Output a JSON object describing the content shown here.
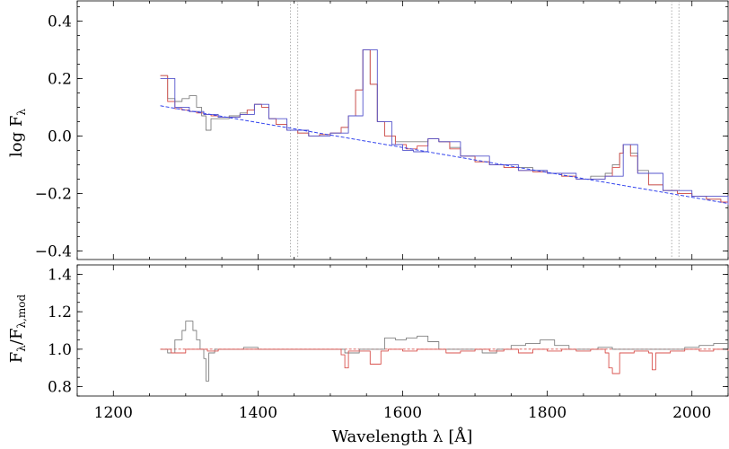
{
  "chart_data": [
    {
      "type": "line",
      "panel": "top",
      "title": "",
      "xlabel": "",
      "ylabel": "log F",
      "ylabel_sub": "λ",
      "xlim": [
        1150,
        2050
      ],
      "ylim": [
        -0.43,
        0.47
      ],
      "xticks": [
        1200,
        1400,
        1600,
        1800,
        2000
      ],
      "yticks": [
        -0.4,
        -0.2,
        0.0,
        0.2,
        0.4
      ],
      "ytick_labels": [
        "−0.4",
        "−0.2",
        "0.0",
        "0.2",
        "0.4"
      ],
      "vlines": [
        1445,
        1455,
        1972,
        1982
      ],
      "series": [
        {
          "role": "observed spectrum",
          "color": "#808080",
          "x": [
            1265,
            1275,
            1285,
            1295,
            1305,
            1315,
            1322,
            1328,
            1335,
            1345,
            1360,
            1375,
            1385,
            1395,
            1405,
            1415,
            1425,
            1440,
            1455,
            1470,
            1485,
            1500,
            1515,
            1525,
            1535,
            1545,
            1555,
            1565,
            1575,
            1590,
            1605,
            1620,
            1635,
            1650,
            1665,
            1680,
            1700,
            1720,
            1740,
            1760,
            1780,
            1800,
            1820,
            1840,
            1860,
            1880,
            1890,
            1900,
            1905,
            1915,
            1925,
            1940,
            1960,
            1980,
            2000,
            2020,
            2040,
            2050
          ],
          "y": [
            0.21,
            0.13,
            0.12,
            0.13,
            0.14,
            0.1,
            0.07,
            0.02,
            0.06,
            0.06,
            0.07,
            0.08,
            0.09,
            0.11,
            0.1,
            0.06,
            0.04,
            0.02,
            0.01,
            0.0,
            0.005,
            0.01,
            0.03,
            0.07,
            0.16,
            0.3,
            0.18,
            0.05,
            0.0,
            -0.02,
            -0.02,
            -0.02,
            -0.01,
            -0.02,
            -0.04,
            -0.07,
            -0.09,
            -0.1,
            -0.11,
            -0.11,
            -0.12,
            -0.13,
            -0.14,
            -0.15,
            -0.14,
            -0.13,
            -0.1,
            -0.06,
            -0.03,
            -0.06,
            -0.12,
            -0.17,
            -0.19,
            -0.2,
            -0.21,
            -0.22,
            -0.23,
            -0.24
          ]
        },
        {
          "role": "model fit",
          "color": "#d9534f",
          "x": [
            1265,
            1275,
            1285,
            1295,
            1305,
            1315,
            1325,
            1335,
            1345,
            1360,
            1375,
            1385,
            1395,
            1405,
            1415,
            1425,
            1440,
            1455,
            1470,
            1485,
            1500,
            1515,
            1525,
            1535,
            1545,
            1555,
            1565,
            1575,
            1590,
            1605,
            1620,
            1635,
            1650,
            1665,
            1680,
            1700,
            1720,
            1740,
            1760,
            1780,
            1800,
            1820,
            1840,
            1860,
            1880,
            1890,
            1900,
            1905,
            1915,
            1925,
            1940,
            1960,
            1980,
            2000,
            2020,
            2040,
            2050
          ],
          "y": [
            0.21,
            0.12,
            0.095,
            0.09,
            0.085,
            0.08,
            0.075,
            0.07,
            0.065,
            0.065,
            0.075,
            0.09,
            0.11,
            0.1,
            0.06,
            0.04,
            0.02,
            0.01,
            0.0,
            0.005,
            0.01,
            0.03,
            0.07,
            0.16,
            0.3,
            0.18,
            0.05,
            0.0,
            -0.03,
            -0.045,
            -0.035,
            -0.01,
            -0.02,
            -0.045,
            -0.07,
            -0.09,
            -0.1,
            -0.11,
            -0.12,
            -0.125,
            -0.13,
            -0.14,
            -0.15,
            -0.15,
            -0.14,
            -0.11,
            -0.06,
            -0.03,
            -0.07,
            -0.13,
            -0.17,
            -0.19,
            -0.2,
            -0.21,
            -0.22,
            -0.23,
            -0.24
          ]
        },
        {
          "role": "model fit (line profiles)",
          "color": "#5555cc",
          "x": [
            1265,
            1285,
            1305,
            1325,
            1345,
            1375,
            1395,
            1415,
            1440,
            1470,
            1500,
            1525,
            1545,
            1565,
            1585,
            1600,
            1615,
            1635,
            1650,
            1680,
            1720,
            1760,
            1800,
            1840,
            1880,
            1905,
            1925,
            1960,
            2000,
            2050
          ],
          "y": [
            0.2,
            0.1,
            0.085,
            0.075,
            0.065,
            0.075,
            0.11,
            0.06,
            0.02,
            0.0,
            0.01,
            0.07,
            0.3,
            0.05,
            -0.03,
            -0.05,
            -0.055,
            -0.01,
            -0.02,
            -0.07,
            -0.1,
            -0.12,
            -0.13,
            -0.15,
            -0.14,
            -0.03,
            -0.13,
            -0.19,
            -0.21,
            -0.24
          ]
        },
        {
          "role": "continuum",
          "color": "#3344ee",
          "dashed": true,
          "x": [
            1265,
            2050
          ],
          "y": [
            0.105,
            -0.235
          ]
        }
      ]
    },
    {
      "type": "line",
      "panel": "bottom",
      "title": "",
      "xlabel": "Wavelength λ [Å]",
      "ylabel": "F",
      "ylabel_sub": "λ",
      "ylabel_mid": "/F",
      "ylabel_sub2": "λ,mod",
      "xlim": [
        1150,
        2050
      ],
      "ylim": [
        0.75,
        1.45
      ],
      "xticks": [
        1200,
        1400,
        1600,
        1800,
        2000
      ],
      "xtick_labels": [
        "1200",
        "1400",
        "1600",
        "1800",
        "2000"
      ],
      "yticks": [
        0.8,
        1.0,
        1.2,
        1.4
      ],
      "ytick_labels": [
        "0.8",
        "1.0",
        "1.2",
        "1.4"
      ],
      "reference_line": {
        "y": 1.0,
        "color": "#d9534f",
        "dashed": true,
        "x": [
          1265,
          2050
        ]
      },
      "series": [
        {
          "role": "ratio (observed)",
          "color": "#808080",
          "x": [
            1265,
            1275,
            1285,
            1295,
            1300,
            1305,
            1310,
            1315,
            1320,
            1325,
            1328,
            1332,
            1340,
            1360,
            1380,
            1400,
            1420,
            1440,
            1460,
            1480,
            1500,
            1520,
            1540,
            1560,
            1575,
            1590,
            1605,
            1620,
            1635,
            1650,
            1670,
            1690,
            1710,
            1730,
            1750,
            1770,
            1790,
            1810,
            1830,
            1850,
            1870,
            1890,
            1910,
            1930,
            1950,
            1970,
            1990,
            2010,
            2030,
            2050
          ],
          "y": [
            1.0,
            0.98,
            1.05,
            1.1,
            1.15,
            1.15,
            1.1,
            1.05,
            1.0,
            0.95,
            0.83,
            0.98,
            1.0,
            1.0,
            1.01,
            1.0,
            1.0,
            1.0,
            1.0,
            1.0,
            1.0,
            0.98,
            1.0,
            1.0,
            1.06,
            1.05,
            1.06,
            1.07,
            1.04,
            1.0,
            1.0,
            1.0,
            0.98,
            1.0,
            1.02,
            1.03,
            1.05,
            1.02,
            1.0,
            1.0,
            1.01,
            1.0,
            1.0,
            1.0,
            1.0,
            1.0,
            1.01,
            1.02,
            1.03,
            1.03
          ]
        },
        {
          "role": "ratio (fit)",
          "color": "#d9534f",
          "x": [
            1265,
            1280,
            1300,
            1320,
            1330,
            1345,
            1360,
            1380,
            1400,
            1420,
            1440,
            1460,
            1480,
            1500,
            1515,
            1520,
            1525,
            1540,
            1555,
            1570,
            1580,
            1600,
            1620,
            1640,
            1660,
            1680,
            1700,
            1720,
            1740,
            1760,
            1780,
            1800,
            1820,
            1840,
            1860,
            1880,
            1885,
            1890,
            1900,
            1920,
            1940,
            1945,
            1950,
            1970,
            1990,
            2010,
            2030,
            2050
          ],
          "y": [
            1.0,
            0.98,
            1.0,
            1.0,
            0.99,
            1.0,
            1.0,
            1.0,
            1.0,
            1.0,
            1.0,
            1.0,
            1.0,
            1.0,
            0.97,
            0.9,
            0.99,
            0.99,
            0.92,
            0.99,
            1.0,
            0.99,
            1.0,
            1.0,
            0.98,
            0.99,
            1.0,
            0.99,
            1.0,
            0.98,
            1.0,
            0.99,
            1.0,
            0.99,
            1.0,
            0.98,
            0.9,
            0.87,
            0.98,
            0.99,
            0.98,
            0.89,
            0.98,
            0.99,
            1.0,
            0.99,
            1.0,
            0.99
          ]
        }
      ]
    }
  ]
}
